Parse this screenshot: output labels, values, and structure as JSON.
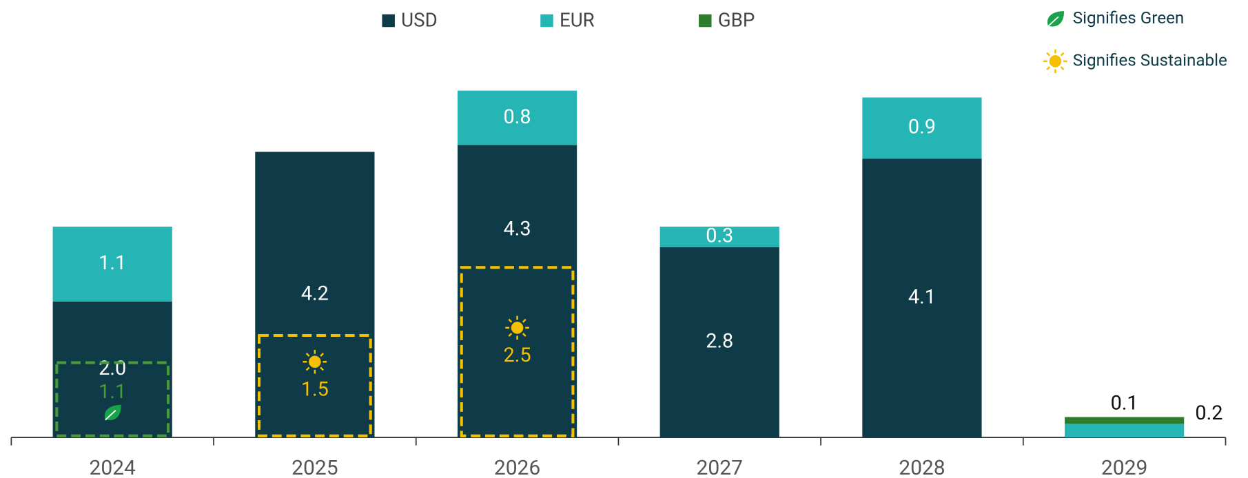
{
  "chart_data": {
    "type": "stacked_bar",
    "categories": [
      "2024",
      "2025",
      "2026",
      "2027",
      "2028",
      "2029"
    ],
    "series": [
      {
        "name": "USD",
        "color": "#0e3b47",
        "values": [
          2.0,
          4.2,
          4.3,
          2.8,
          4.1,
          null
        ],
        "value_labels": [
          "2.0",
          "4.2",
          "4.3",
          "2.8",
          "4.1",
          null
        ]
      },
      {
        "name": "EUR",
        "color": "#26b5b5",
        "values": [
          1.1,
          null,
          0.8,
          0.3,
          0.9,
          0.2
        ]
      },
      {
        "name": "GBP",
        "color": "#2e7d2e",
        "values": [
          null,
          null,
          null,
          null,
          null,
          0.1
        ]
      }
    ],
    "ylim": [
      0,
      5.1
    ],
    "highlights": {
      "green": {
        "color": "#4a9a3a",
        "label": "Signifies Green",
        "values": [
          1.1,
          null,
          null,
          null,
          null,
          null
        ]
      },
      "sustainable": {
        "color": "#f5c000",
        "label": "Signifies Sustainable",
        "values": [
          null,
          1.5,
          2.5,
          null,
          null,
          null
        ]
      }
    }
  }
}
